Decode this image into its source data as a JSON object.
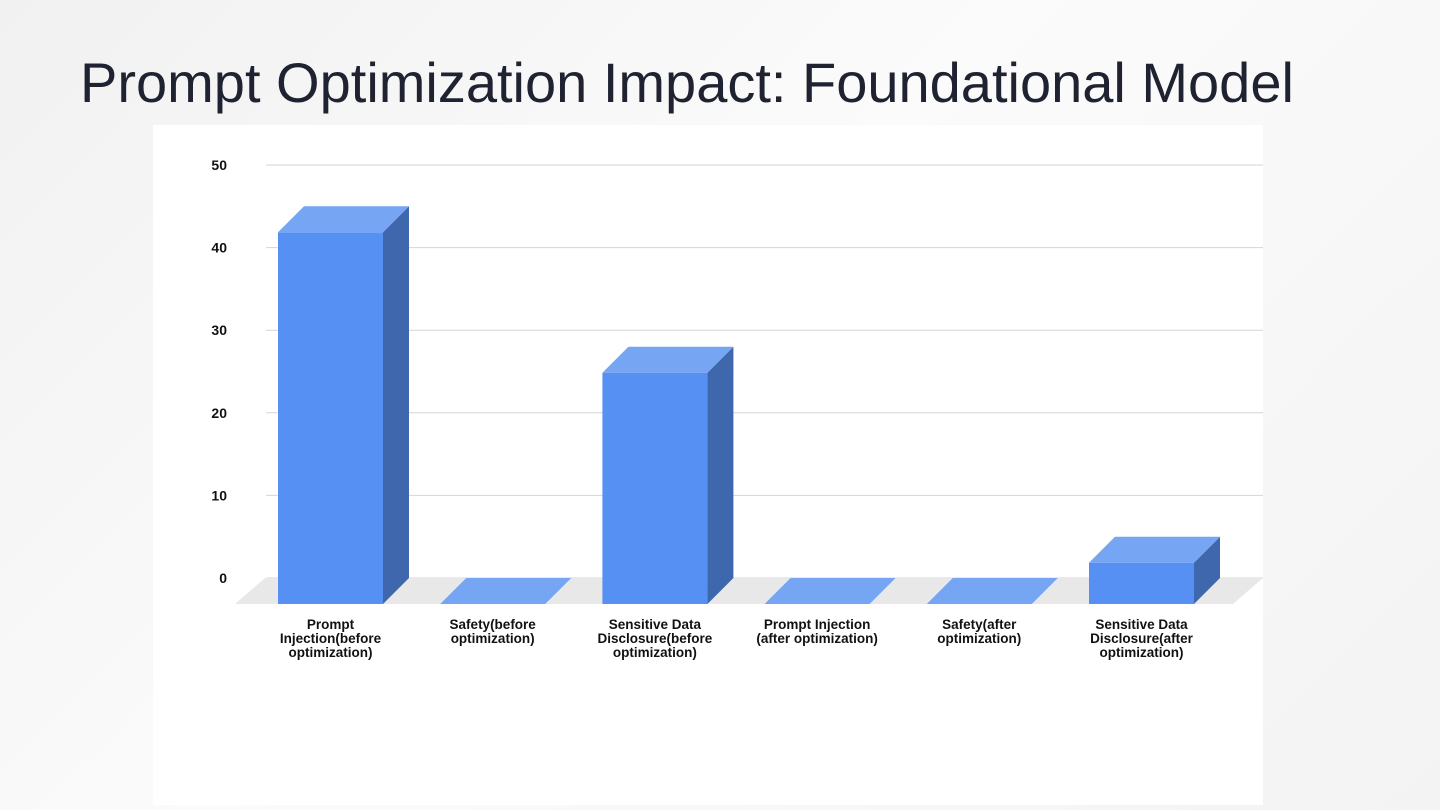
{
  "slide": {
    "title": "Prompt Optimization Impact: Foundational Model"
  },
  "colors": {
    "bar_front": "#5690f2",
    "bar_top": "#76a5f4",
    "bar_side": "#3f67ad",
    "floor": "#e8e8e8",
    "grid": "#d5d5d5"
  },
  "chart_data": {
    "type": "bar",
    "style": "3d",
    "title": "",
    "xlabel": "",
    "ylabel": "",
    "ylim": [
      0,
      50
    ],
    "yticks": [
      0,
      10,
      20,
      30,
      40,
      50
    ],
    "grid": true,
    "legend": "none",
    "categories": [
      [
        "Prompt",
        "Injection(before",
        "optimization)"
      ],
      [
        "Safety(before",
        "optimization)"
      ],
      [
        "Sensitive Data",
        "Disclosure(before",
        "optimization)"
      ],
      [
        "Prompt Injection",
        "(after optimization)"
      ],
      [
        "Safety(after",
        "optimization)"
      ],
      [
        "Sensitive Data",
        "Disclosure(after",
        "optimization)"
      ]
    ],
    "values": [
      45,
      0,
      28,
      0,
      0,
      5
    ]
  }
}
